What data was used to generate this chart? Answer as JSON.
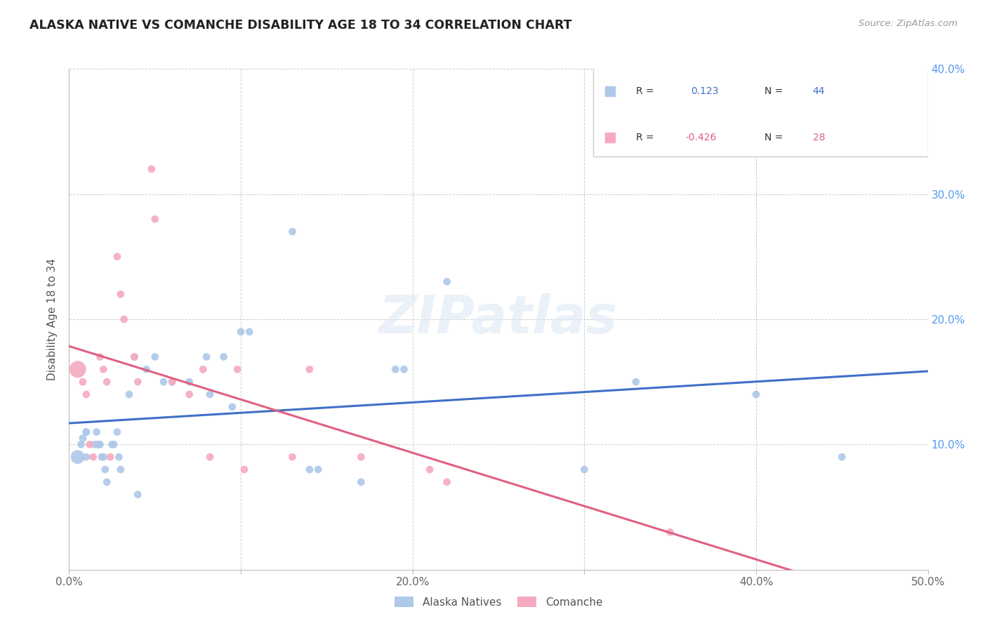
{
  "title": "ALASKA NATIVE VS COMANCHE DISABILITY AGE 18 TO 34 CORRELATION CHART",
  "source": "Source: ZipAtlas.com",
  "ylabel": "Disability Age 18 to 34",
  "xlim": [
    0.0,
    0.5
  ],
  "ylim": [
    0.0,
    0.4
  ],
  "xticks": [
    0.0,
    0.1,
    0.2,
    0.3,
    0.4,
    0.5
  ],
  "yticks": [
    0.0,
    0.1,
    0.2,
    0.3,
    0.4
  ],
  "xticklabels": [
    "0.0%",
    "",
    "20.0%",
    "",
    "40.0%",
    "50.0%"
  ],
  "yticklabels_right": [
    "",
    "10.0%",
    "20.0%",
    "30.0%",
    "40.0%"
  ],
  "r_alaska": 0.123,
  "n_alaska": 44,
  "r_comanche": -0.426,
  "n_comanche": 28,
  "alaska_color": "#adc8e8",
  "comanche_color": "#f5aabf",
  "alaska_line_color": "#4070c8",
  "comanche_line_color": "#e06080",
  "legend_label_alaska": "Alaska Natives",
  "legend_label_comanche": "Comanche",
  "alaska_x": [
    0.005,
    0.007,
    0.008,
    0.01,
    0.01,
    0.01,
    0.015,
    0.016,
    0.017,
    0.018,
    0.019,
    0.02,
    0.021,
    0.022,
    0.025,
    0.026,
    0.028,
    0.029,
    0.03,
    0.035,
    0.038,
    0.04,
    0.045,
    0.05,
    0.055,
    0.06,
    0.07,
    0.08,
    0.082,
    0.09,
    0.095,
    0.1,
    0.105,
    0.13,
    0.14,
    0.145,
    0.17,
    0.19,
    0.195,
    0.22,
    0.3,
    0.33,
    0.4,
    0.45
  ],
  "alaska_y": [
    0.09,
    0.1,
    0.105,
    0.11,
    0.11,
    0.09,
    0.1,
    0.11,
    0.1,
    0.1,
    0.09,
    0.09,
    0.08,
    0.07,
    0.1,
    0.1,
    0.11,
    0.09,
    0.08,
    0.14,
    0.17,
    0.06,
    0.16,
    0.17,
    0.15,
    0.15,
    0.15,
    0.17,
    0.14,
    0.17,
    0.13,
    0.19,
    0.19,
    0.27,
    0.08,
    0.08,
    0.07,
    0.16,
    0.16,
    0.23,
    0.08,
    0.15,
    0.14,
    0.09
  ],
  "comanche_x": [
    0.005,
    0.008,
    0.01,
    0.012,
    0.014,
    0.018,
    0.02,
    0.022,
    0.024,
    0.028,
    0.03,
    0.032,
    0.038,
    0.04,
    0.048,
    0.05,
    0.06,
    0.07,
    0.078,
    0.082,
    0.098,
    0.102,
    0.13,
    0.14,
    0.17,
    0.21,
    0.22,
    0.35
  ],
  "comanche_y": [
    0.16,
    0.15,
    0.14,
    0.1,
    0.09,
    0.17,
    0.16,
    0.15,
    0.09,
    0.25,
    0.22,
    0.2,
    0.17,
    0.15,
    0.32,
    0.28,
    0.15,
    0.14,
    0.16,
    0.09,
    0.16,
    0.08,
    0.09,
    0.16,
    0.09,
    0.08,
    0.07,
    0.03
  ],
  "alaska_marker_sizes": [
    200,
    60,
    60,
    60,
    60,
    60,
    60,
    60,
    60,
    60,
    60,
    60,
    60,
    60,
    60,
    60,
    60,
    60,
    60,
    60,
    60,
    60,
    60,
    60,
    60,
    60,
    60,
    60,
    60,
    60,
    60,
    60,
    60,
    60,
    60,
    60,
    60,
    60,
    60,
    60,
    60,
    60,
    60,
    60
  ],
  "comanche_marker_sizes": [
    300,
    60,
    60,
    60,
    60,
    60,
    60,
    60,
    60,
    60,
    60,
    60,
    60,
    60,
    60,
    60,
    60,
    60,
    60,
    60,
    60,
    60,
    60,
    60,
    60,
    60,
    60,
    60
  ]
}
